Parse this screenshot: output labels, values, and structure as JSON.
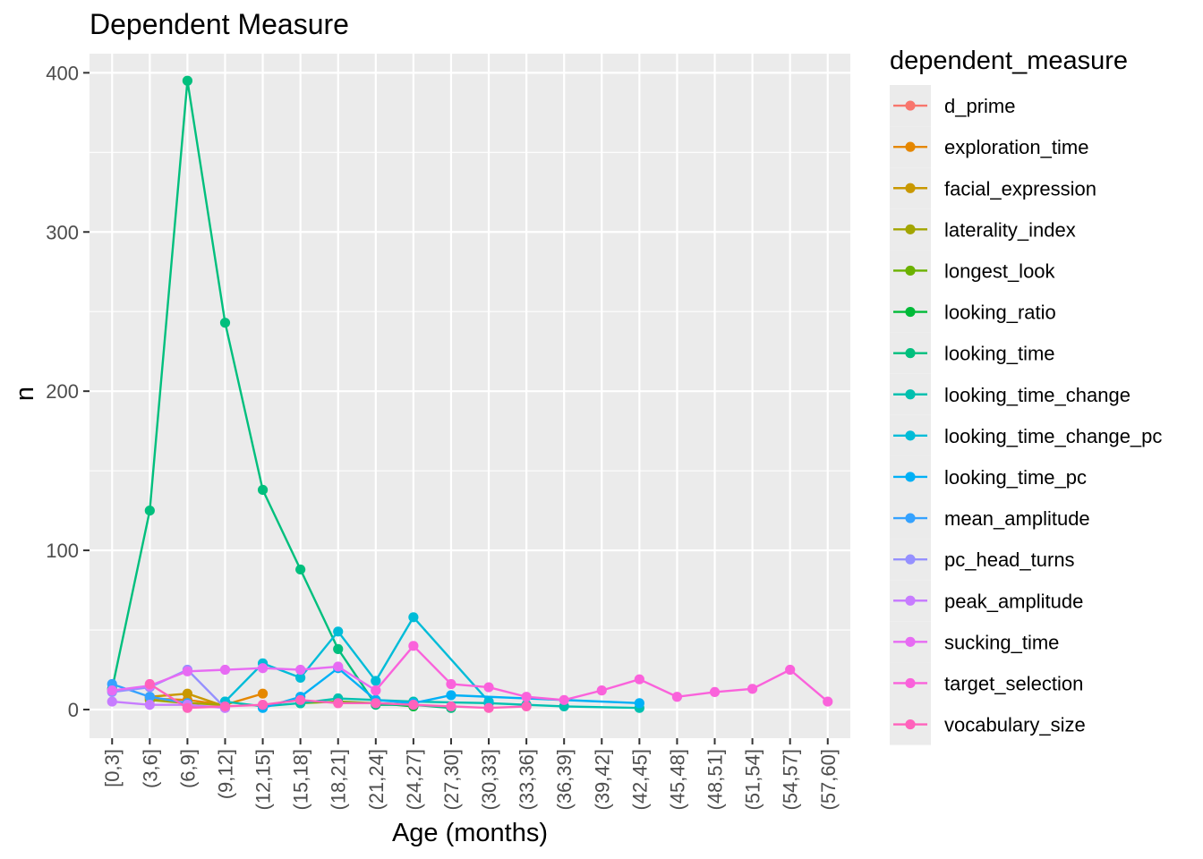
{
  "chart_data": {
    "type": "line",
    "title": "Dependent Measure",
    "xlabel": "Age (months)",
    "ylabel": "n",
    "legend_title": "dependent_measure",
    "legend_position": "right",
    "grid": true,
    "ylim": [
      -18,
      412
    ],
    "yticks": [
      0,
      100,
      200,
      300,
      400
    ],
    "categories": [
      "[0,3]",
      "(3,6]",
      "(6,9]",
      "(9,12]",
      "(12,15]",
      "(15,18]",
      "(18,21]",
      "(21,24]",
      "(24,27]",
      "(27,30]",
      "(30,33]",
      "(33,36]",
      "(36,39]",
      "(39,42]",
      "(42,45]",
      "(45,48]",
      "(48,51]",
      "(51,54]",
      "(54,57]",
      "(57,60]"
    ],
    "series": [
      {
        "name": "d_prime",
        "color": "#F8766D",
        "points": [
          [
            2,
            2
          ],
          [
            3,
            2
          ]
        ]
      },
      {
        "name": "exploration_time",
        "color": "#E58700",
        "points": [
          [
            1,
            7
          ],
          [
            2,
            6
          ],
          [
            3,
            3
          ],
          [
            4,
            10
          ]
        ]
      },
      {
        "name": "facial_expression",
        "color": "#C99800",
        "points": [
          [
            1,
            8
          ],
          [
            2,
            10
          ],
          [
            3,
            2
          ]
        ]
      },
      {
        "name": "laterality_index",
        "color": "#A3A500",
        "points": [
          [
            1,
            6
          ],
          [
            2,
            4
          ],
          [
            3,
            3
          ]
        ]
      },
      {
        "name": "longest_look",
        "color": "#6BB100",
        "points": [
          [
            5,
            4
          ],
          [
            6,
            5
          ],
          [
            7,
            4
          ],
          [
            8,
            3
          ]
        ]
      },
      {
        "name": "looking_ratio",
        "color": "#00BA38",
        "points": [
          [
            7,
            4
          ],
          [
            8,
            2
          ]
        ]
      },
      {
        "name": "looking_time",
        "color": "#00BF7D",
        "points": [
          [
            0,
            13
          ],
          [
            1,
            125
          ],
          [
            2,
            395
          ],
          [
            3,
            243
          ],
          [
            4,
            138
          ],
          [
            5,
            88
          ],
          [
            6,
            38
          ],
          [
            7,
            3
          ],
          [
            8,
            3
          ],
          [
            9,
            1
          ]
        ]
      },
      {
        "name": "looking_time_change",
        "color": "#00C0AF",
        "points": [
          [
            3,
            5
          ],
          [
            4,
            2
          ],
          [
            5,
            4
          ],
          [
            6,
            7
          ],
          [
            7,
            6
          ],
          [
            8,
            5
          ],
          [
            10,
            4
          ],
          [
            11,
            3
          ],
          [
            12,
            2
          ],
          [
            14,
            1
          ]
        ]
      },
      {
        "name": "looking_time_change_pc",
        "color": "#00BCD8",
        "points": [
          [
            3,
            5
          ],
          [
            4,
            29
          ],
          [
            5,
            20
          ],
          [
            6,
            49
          ],
          [
            7,
            18
          ],
          [
            8,
            58
          ],
          [
            10,
            5
          ]
        ]
      },
      {
        "name": "looking_time_pc",
        "color": "#00B0F6",
        "points": [
          [
            4,
            1
          ],
          [
            5,
            8
          ],
          [
            6,
            26
          ],
          [
            7,
            6
          ],
          [
            8,
            4
          ],
          [
            9,
            9
          ],
          [
            14,
            4
          ]
        ]
      },
      {
        "name": "mean_amplitude",
        "color": "#35A2FF",
        "points": [
          [
            0,
            16
          ],
          [
            1,
            8
          ],
          [
            2,
            4
          ]
        ]
      },
      {
        "name": "pc_head_turns",
        "color": "#9590FF",
        "points": [
          [
            0,
            11
          ],
          [
            1,
            14
          ],
          [
            2,
            25
          ],
          [
            3,
            1
          ]
        ]
      },
      {
        "name": "peak_amplitude",
        "color": "#C77CFF",
        "points": [
          [
            0,
            5
          ],
          [
            1,
            3
          ],
          [
            2,
            3
          ],
          [
            3,
            1
          ]
        ]
      },
      {
        "name": "sucking_time",
        "color": "#E76BF3",
        "points": [
          [
            0,
            12
          ],
          [
            1,
            15
          ],
          [
            2,
            24
          ],
          [
            3,
            25
          ],
          [
            4,
            26
          ],
          [
            5,
            25
          ],
          [
            6,
            27
          ],
          [
            7,
            12
          ]
        ]
      },
      {
        "name": "target_selection",
        "color": "#FA62DB",
        "points": [
          [
            7,
            12
          ],
          [
            8,
            40
          ],
          [
            9,
            16
          ],
          [
            10,
            14
          ],
          [
            11,
            8
          ],
          [
            12,
            6
          ],
          [
            13,
            12
          ],
          [
            14,
            19
          ],
          [
            15,
            8
          ],
          [
            16,
            11
          ],
          [
            17,
            13
          ],
          [
            18,
            25
          ],
          [
            19,
            5
          ]
        ]
      },
      {
        "name": "vocabulary_size",
        "color": "#FF62BC",
        "points": [
          [
            1,
            16
          ],
          [
            2,
            1
          ],
          [
            3,
            2
          ],
          [
            4,
            3
          ],
          [
            5,
            6
          ],
          [
            6,
            4
          ],
          [
            7,
            4
          ],
          [
            8,
            3
          ],
          [
            9,
            2
          ],
          [
            10,
            1
          ],
          [
            11,
            2
          ]
        ]
      }
    ]
  }
}
